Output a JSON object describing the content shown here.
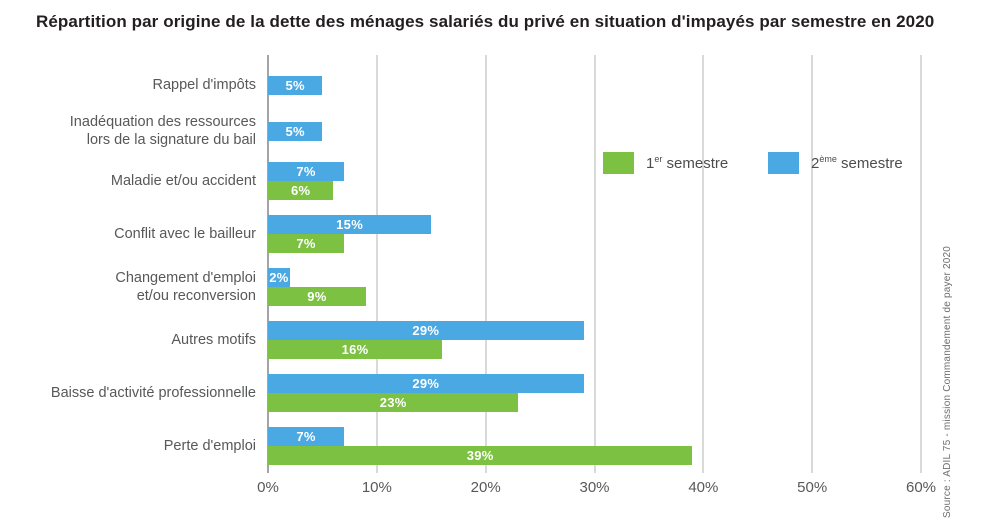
{
  "colors": {
    "semester1_green": "#7cc142",
    "semester2_blue": "#4aa8e3",
    "gridline": "#d9d9d9",
    "axis_zero_line": "#a2a4a7",
    "title_text": "#231f20",
    "label_text": "#57585a",
    "bar_value_text": "#ffffff"
  },
  "source_note": "Source : ADIL 75 - mission Commandement de payer 2020",
  "legend": {
    "items": [
      {
        "name": "1er semestre",
        "prefix": "1",
        "sup": "er",
        "rest": " semestre",
        "color_key": "semester1_green"
      },
      {
        "name": "2ème semestre",
        "prefix": "2",
        "sup": "ème",
        "rest": " semestre",
        "color_key": "semester2_blue"
      }
    ]
  },
  "chart_data": {
    "type": "bar",
    "orientation": "horizontal",
    "title": "Répartition par origine de la dette des ménages salariés du privé en situation d'impayés par semestre en 2020",
    "categories": [
      "Rappel d'impôts",
      "Inadéquation des ressources lors de la signature du bail",
      "Maladie et/ou accident",
      "Conflit avec le bailleur",
      "Changement d'emploi et/ou reconversion",
      "Autres motifs",
      "Baisse d'activité professionnelle",
      "Perte d'emploi"
    ],
    "category_label_lines": [
      [
        "Rappel d'impôts"
      ],
      [
        "Inadéquation des ressources",
        "lors de la signature du bail"
      ],
      [
        "Maladie et/ou accident"
      ],
      [
        "Conflit avec le bailleur"
      ],
      [
        "Changement d'emploi",
        "et/ou reconversion"
      ],
      [
        "Autres motifs"
      ],
      [
        "Baisse d'activité professionnelle"
      ],
      [
        "Perte d'emploi"
      ]
    ],
    "series": [
      {
        "name": "1er semestre",
        "color_key": "semester1_green",
        "values": [
          null,
          null,
          6,
          7,
          9,
          16,
          23,
          39
        ]
      },
      {
        "name": "2ème semestre",
        "color_key": "semester2_blue",
        "values": [
          5,
          5,
          7,
          15,
          2,
          29,
          29,
          7
        ]
      }
    ],
    "value_suffix": "%",
    "xlim": [
      0,
      60
    ],
    "xticks": [
      {
        "value": 0,
        "label": "0%"
      },
      {
        "value": 10,
        "label": "10%"
      },
      {
        "value": 20,
        "label": "20%"
      },
      {
        "value": 30,
        "label": "30%"
      },
      {
        "value": 40,
        "label": "40%"
      },
      {
        "value": 50,
        "label": "50%"
      },
      {
        "value": 60,
        "label": "60%"
      }
    ],
    "grid": "vertical-only",
    "legend_position": "top-right-inside"
  }
}
